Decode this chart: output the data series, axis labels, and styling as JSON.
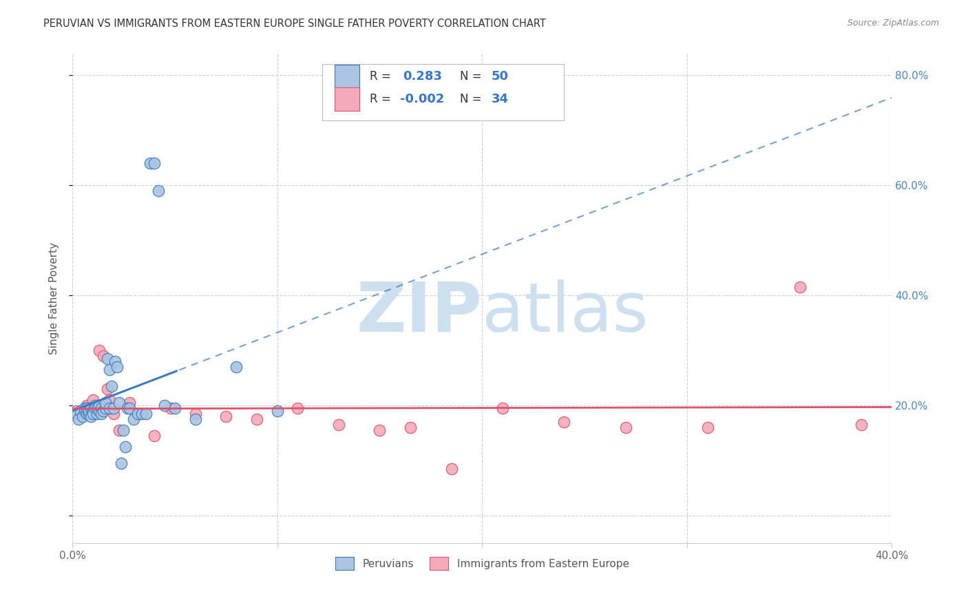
{
  "title": "PERUVIAN VS IMMIGRANTS FROM EASTERN EUROPE SINGLE FATHER POVERTY CORRELATION CHART",
  "source": "Source: ZipAtlas.com",
  "ylabel": "Single Father Poverty",
  "xlim": [
    0.0,
    0.4
  ],
  "ylim": [
    -0.05,
    0.84
  ],
  "blue_color": "#aac4e2",
  "pink_color": "#f4aab8",
  "blue_line_color": "#3a7bbf",
  "pink_line_color": "#e0526a",
  "blue_r": 0.283,
  "blue_n": 50,
  "pink_r": -0.002,
  "pink_n": 34,
  "legend_label_blue": "Peruvians",
  "legend_label_pink": "Immigrants from Eastern Europe",
  "blue_scatter_x": [
    0.002,
    0.003,
    0.004,
    0.005,
    0.006,
    0.006,
    0.007,
    0.007,
    0.008,
    0.008,
    0.009,
    0.009,
    0.01,
    0.01,
    0.011,
    0.011,
    0.012,
    0.012,
    0.013,
    0.013,
    0.014,
    0.014,
    0.015,
    0.016,
    0.016,
    0.017,
    0.018,
    0.018,
    0.019,
    0.02,
    0.021,
    0.022,
    0.023,
    0.024,
    0.025,
    0.026,
    0.027,
    0.028,
    0.03,
    0.032,
    0.034,
    0.036,
    0.038,
    0.04,
    0.042,
    0.045,
    0.05,
    0.06,
    0.08,
    0.1
  ],
  "blue_scatter_y": [
    0.185,
    0.175,
    0.19,
    0.18,
    0.19,
    0.195,
    0.185,
    0.195,
    0.185,
    0.19,
    0.195,
    0.18,
    0.19,
    0.185,
    0.2,
    0.195,
    0.185,
    0.195,
    0.19,
    0.2,
    0.195,
    0.185,
    0.19,
    0.195,
    0.205,
    0.285,
    0.195,
    0.265,
    0.235,
    0.195,
    0.28,
    0.27,
    0.205,
    0.095,
    0.155,
    0.125,
    0.195,
    0.195,
    0.175,
    0.185,
    0.185,
    0.185,
    0.64,
    0.64,
    0.59,
    0.2,
    0.195,
    0.175,
    0.27,
    0.19
  ],
  "pink_scatter_x": [
    0.002,
    0.004,
    0.006,
    0.007,
    0.008,
    0.009,
    0.01,
    0.01,
    0.011,
    0.012,
    0.013,
    0.015,
    0.017,
    0.018,
    0.02,
    0.023,
    0.028,
    0.033,
    0.04,
    0.048,
    0.06,
    0.075,
    0.09,
    0.11,
    0.13,
    0.15,
    0.165,
    0.185,
    0.21,
    0.24,
    0.27,
    0.31,
    0.355,
    0.385
  ],
  "pink_scatter_y": [
    0.19,
    0.185,
    0.195,
    0.2,
    0.19,
    0.195,
    0.21,
    0.185,
    0.195,
    0.2,
    0.3,
    0.29,
    0.23,
    0.21,
    0.185,
    0.155,
    0.205,
    0.185,
    0.145,
    0.195,
    0.185,
    0.18,
    0.175,
    0.195,
    0.165,
    0.155,
    0.16,
    0.085,
    0.195,
    0.17,
    0.16,
    0.16,
    0.415,
    0.165
  ],
  "grid_color": "#d0d0d0",
  "background_color": "#ffffff",
  "watermark_zip_color": "#cce0f0",
  "watermark_atlas_color": "#cce0f0"
}
